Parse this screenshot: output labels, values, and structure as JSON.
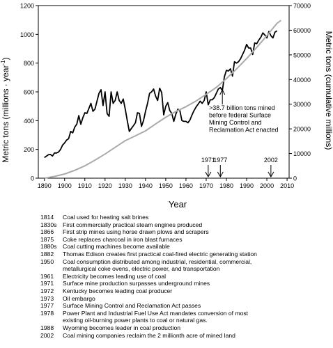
{
  "chart_data": {
    "type": "line",
    "xlabel": "Year",
    "ylabel_left": "Metric tons (millions · year",
    "ylabel_left_sup": "-1",
    "ylabel_left_close": ")",
    "ylabel_right": "Metric tons (cumulative millions)",
    "xlim": [
      1887,
      2011
    ],
    "ylim_left": [
      0,
      1200
    ],
    "ylim_right": [
      0,
      70000
    ],
    "x_ticks": [
      "1890",
      "1900",
      "1910",
      "1920",
      "1930",
      "1940",
      "1950",
      "1960",
      "1970",
      "1980",
      "1990",
      "2000",
      "2010"
    ],
    "y_ticks_left": [
      "0",
      "200",
      "400",
      "600",
      "800",
      "1000",
      "1200"
    ],
    "y_ticks_right": [
      "0",
      "10000",
      "20000",
      "30000",
      "40000",
      "50000",
      "60000",
      "70000"
    ],
    "grid": false,
    "legend": "none",
    "series": [
      {
        "axis": "left",
        "color": "#000000",
        "points": [
          [
            1890,
            143
          ],
          [
            1891,
            153
          ],
          [
            1892,
            163
          ],
          [
            1893,
            165
          ],
          [
            1894,
            154
          ],
          [
            1895,
            175
          ],
          [
            1896,
            175
          ],
          [
            1897,
            182
          ],
          [
            1898,
            200
          ],
          [
            1899,
            230
          ],
          [
            1900,
            245
          ],
          [
            1901,
            265
          ],
          [
            1902,
            275
          ],
          [
            1903,
            325
          ],
          [
            1904,
            315
          ],
          [
            1905,
            355
          ],
          [
            1906,
            375
          ],
          [
            1907,
            435
          ],
          [
            1908,
            375
          ],
          [
            1909,
            420
          ],
          [
            1910,
            455
          ],
          [
            1911,
            450
          ],
          [
            1912,
            485
          ],
          [
            1913,
            520
          ],
          [
            1914,
            465
          ],
          [
            1915,
            480
          ],
          [
            1916,
            535
          ],
          [
            1917,
            590
          ],
          [
            1918,
            615
          ],
          [
            1919,
            505
          ],
          [
            1920,
            600
          ],
          [
            1921,
            450
          ],
          [
            1922,
            430
          ],
          [
            1923,
            600
          ],
          [
            1924,
            520
          ],
          [
            1925,
            540
          ],
          [
            1926,
            600
          ],
          [
            1927,
            540
          ],
          [
            1928,
            520
          ],
          [
            1929,
            550
          ],
          [
            1930,
            480
          ],
          [
            1931,
            400
          ],
          [
            1932,
            325
          ],
          [
            1933,
            345
          ],
          [
            1934,
            365
          ],
          [
            1935,
            385
          ],
          [
            1936,
            455
          ],
          [
            1937,
            450
          ],
          [
            1938,
            360
          ],
          [
            1939,
            400
          ],
          [
            1940,
            465
          ],
          [
            1941,
            520
          ],
          [
            1942,
            590
          ],
          [
            1943,
            600
          ],
          [
            1944,
            620
          ],
          [
            1945,
            570
          ],
          [
            1946,
            540
          ],
          [
            1947,
            625
          ],
          [
            1948,
            595
          ],
          [
            1949,
            440
          ],
          [
            1950,
            500
          ],
          [
            1951,
            525
          ],
          [
            1952,
            470
          ],
          [
            1953,
            450
          ],
          [
            1954,
            395
          ],
          [
            1955,
            445
          ],
          [
            1956,
            480
          ],
          [
            1957,
            470
          ],
          [
            1958,
            400
          ],
          [
            1959,
            395
          ],
          [
            1960,
            395
          ],
          [
            1961,
            385
          ],
          [
            1962,
            405
          ],
          [
            1963,
            440
          ],
          [
            1964,
            470
          ],
          [
            1965,
            495
          ],
          [
            1966,
            515
          ],
          [
            1967,
            535
          ],
          [
            1968,
            520
          ],
          [
            1969,
            540
          ],
          [
            1970,
            600
          ],
          [
            1971,
            510
          ],
          [
            1972,
            545
          ],
          [
            1973,
            545
          ],
          [
            1974,
            560
          ],
          [
            1975,
            590
          ],
          [
            1976,
            620
          ],
          [
            1977,
            630
          ],
          [
            1978,
            610
          ],
          [
            1979,
            705
          ],
          [
            1980,
            750
          ],
          [
            1981,
            745
          ],
          [
            1982,
            760
          ],
          [
            1983,
            710
          ],
          [
            1984,
            810
          ],
          [
            1985,
            800
          ],
          [
            1986,
            810
          ],
          [
            1987,
            830
          ],
          [
            1988,
            860
          ],
          [
            1989,
            890
          ],
          [
            1990,
            930
          ],
          [
            1991,
            905
          ],
          [
            1992,
            905
          ],
          [
            1993,
            860
          ],
          [
            1994,
            940
          ],
          [
            1995,
            935
          ],
          [
            1996,
            960
          ],
          [
            1997,
            980
          ],
          [
            1998,
            1010
          ],
          [
            1999,
            995
          ],
          [
            2000,
            975
          ],
          [
            2001,
            1020
          ],
          [
            2002,
            990
          ],
          [
            2003,
            975
          ],
          [
            2004,
            1015
          ],
          [
            2005,
            1025
          ]
        ]
      },
      {
        "axis": "right",
        "color": "#aaaaaa",
        "points": [
          [
            1890,
            0
          ],
          [
            1895,
            700
          ],
          [
            1900,
            1700
          ],
          [
            1905,
            3200
          ],
          [
            1910,
            5000
          ],
          [
            1915,
            7300
          ],
          [
            1920,
            9800
          ],
          [
            1925,
            12500
          ],
          [
            1930,
            15200
          ],
          [
            1935,
            17200
          ],
          [
            1940,
            19200
          ],
          [
            1945,
            22000
          ],
          [
            1950,
            24700
          ],
          [
            1955,
            27000
          ],
          [
            1960,
            29000
          ],
          [
            1965,
            31300
          ],
          [
            1970,
            34000
          ],
          [
            1975,
            36800
          ],
          [
            1980,
            40400
          ],
          [
            1985,
            44300
          ],
          [
            1990,
            48500
          ],
          [
            1995,
            53000
          ],
          [
            2000,
            57800
          ],
          [
            2005,
            62800
          ],
          [
            2007,
            64000
          ]
        ]
      }
    ],
    "annotations": [
      {
        "x": 1971,
        "label": "1971"
      },
      {
        "x": 1977,
        "label": "1977"
      },
      {
        "x": 2002,
        "label": "2002"
      }
    ],
    "callout": {
      "x": 1978,
      "lines": [
        ">38.7 billion tons mined",
        "before federal Surface",
        "Mining Control and",
        "Reclamation Act enacted"
      ]
    }
  },
  "timeline": [
    {
      "year": "1814",
      "event": "Coal used for heating salt brines"
    },
    {
      "year": "1830s",
      "event": "First commercially practical steam engines produced"
    },
    {
      "year": "1866",
      "event": "First strip mines using horse drawn plows and scrapers"
    },
    {
      "year": "1875",
      "event": "Coke replaces charcoal in iron blast furnaces"
    },
    {
      "year": "1880s",
      "event": "Coal cutting machines become available"
    },
    {
      "year": "1882",
      "event": "Thomas Edison creates first practical coal-fired electric generating station"
    },
    {
      "year": "1950",
      "event": "Coal consumption distributed among industrial, residential, commercial,\nmetallurgical coke ovens, electric power, and transportation"
    },
    {
      "year": "1961",
      "event": "Electricity becomes leading use of coal"
    },
    {
      "year": "1971",
      "event": "Surface mine production surpasses underground mines"
    },
    {
      "year": "1972",
      "event": "Kentucky becomes leading coal producer"
    },
    {
      "year": "1973",
      "event": "Oil embargo"
    },
    {
      "year": "1977",
      "event": "Surface Mining Control and Reclamation Act passes"
    },
    {
      "year": "1978",
      "event": "Power Plant and Industrial Fuel Use Act mandates conversion of most\nexisting oil-burning power plants to coal or natural gas."
    },
    {
      "year": "1988",
      "event": "Wyoming becomes leader in coal production"
    },
    {
      "year": "2002",
      "event": "Coal mining companies reclaim the 2 millionth acre of mined land"
    }
  ]
}
